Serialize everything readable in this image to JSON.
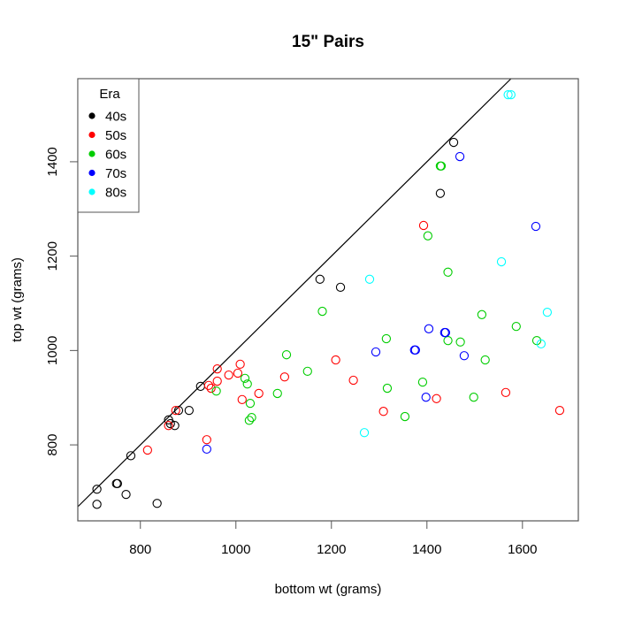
{
  "chart_data": {
    "type": "scatter",
    "title": "15\" Pairs",
    "xlabel": "bottom wt (grams)",
    "ylabel": "top wt (grams)",
    "xlim": [
      669,
      1717
    ],
    "ylim": [
      639,
      1576
    ],
    "xticks": [
      800,
      1000,
      1200,
      1400,
      1600
    ],
    "yticks": [
      800,
      1000,
      1200,
      1400
    ],
    "grid": false,
    "reference_line": {
      "type": "y=x"
    },
    "legend": {
      "title": "Era",
      "position": "top-left",
      "entries": [
        {
          "label": "40s",
          "color": "#000000"
        },
        {
          "label": "50s",
          "color": "#ff0000"
        },
        {
          "label": "60s",
          "color": "#00cd00"
        },
        {
          "label": "70s",
          "color": "#0000ff"
        },
        {
          "label": "80s",
          "color": "#00ffff"
        }
      ]
    },
    "series": [
      {
        "name": "40s",
        "color": "#000000",
        "points": [
          [
            709,
            674
          ],
          [
            709,
            706
          ],
          [
            750,
            718
          ],
          [
            752,
            718
          ],
          [
            770,
            695
          ],
          [
            780,
            777
          ],
          [
            835,
            676
          ],
          [
            859,
            853
          ],
          [
            863,
            845
          ],
          [
            872,
            841
          ],
          [
            880,
            873
          ],
          [
            902,
            873
          ],
          [
            926,
            924
          ],
          [
            1176,
            1151
          ],
          [
            1219,
            1134
          ],
          [
            1428,
            1333
          ],
          [
            1456,
            1441
          ]
        ]
      },
      {
        "name": "50s",
        "color": "#ff0000",
        "points": [
          [
            815,
            789
          ],
          [
            859,
            841
          ],
          [
            874,
            873
          ],
          [
            939,
            811
          ],
          [
            943,
            926
          ],
          [
            948,
            920
          ],
          [
            961,
            961
          ],
          [
            961,
            935
          ],
          [
            985,
            948
          ],
          [
            1004,
            952
          ],
          [
            1009,
            971
          ],
          [
            1013,
            896
          ],
          [
            1048,
            909
          ],
          [
            1102,
            944
          ],
          [
            1209,
            980
          ],
          [
            1246,
            937
          ],
          [
            1309,
            871
          ],
          [
            1393,
            1265
          ],
          [
            1420,
            898
          ],
          [
            1565,
            911
          ],
          [
            1678,
            873
          ]
        ]
      },
      {
        "name": "60s",
        "color": "#00cd00",
        "points": [
          [
            959,
            914
          ],
          [
            1019,
            941
          ],
          [
            1024,
            929
          ],
          [
            1030,
            888
          ],
          [
            1033,
            858
          ],
          [
            1028,
            852
          ],
          [
            1087,
            909
          ],
          [
            1106,
            991
          ],
          [
            1150,
            956
          ],
          [
            1181,
            1083
          ],
          [
            1315,
            1025
          ],
          [
            1317,
            920
          ],
          [
            1354,
            860
          ],
          [
            1391,
            933
          ],
          [
            1402,
            1243
          ],
          [
            1428,
            1391
          ],
          [
            1430,
            1391
          ],
          [
            1444,
            1166
          ],
          [
            1444,
            1021
          ],
          [
            1470,
            1018
          ],
          [
            1498,
            901
          ],
          [
            1515,
            1076
          ],
          [
            1522,
            980
          ],
          [
            1587,
            1051
          ],
          [
            1630,
            1021
          ]
        ]
      },
      {
        "name": "70s",
        "color": "#0000ff",
        "points": [
          [
            939,
            791
          ],
          [
            1293,
            997
          ],
          [
            1374,
            1001
          ],
          [
            1376,
            1001
          ],
          [
            1398,
            901
          ],
          [
            1404,
            1046
          ],
          [
            1437,
            1038
          ],
          [
            1439,
            1038
          ],
          [
            1469,
            1411
          ],
          [
            1478,
            989
          ],
          [
            1628,
            1263
          ]
        ]
      },
      {
        "name": "80s",
        "color": "#00ffff",
        "points": [
          [
            1269,
            826
          ],
          [
            1280,
            1151
          ],
          [
            1556,
            1188
          ],
          [
            1570,
            1542
          ],
          [
            1576,
            1542
          ],
          [
            1639,
            1014
          ],
          [
            1652,
            1081
          ]
        ]
      }
    ]
  }
}
